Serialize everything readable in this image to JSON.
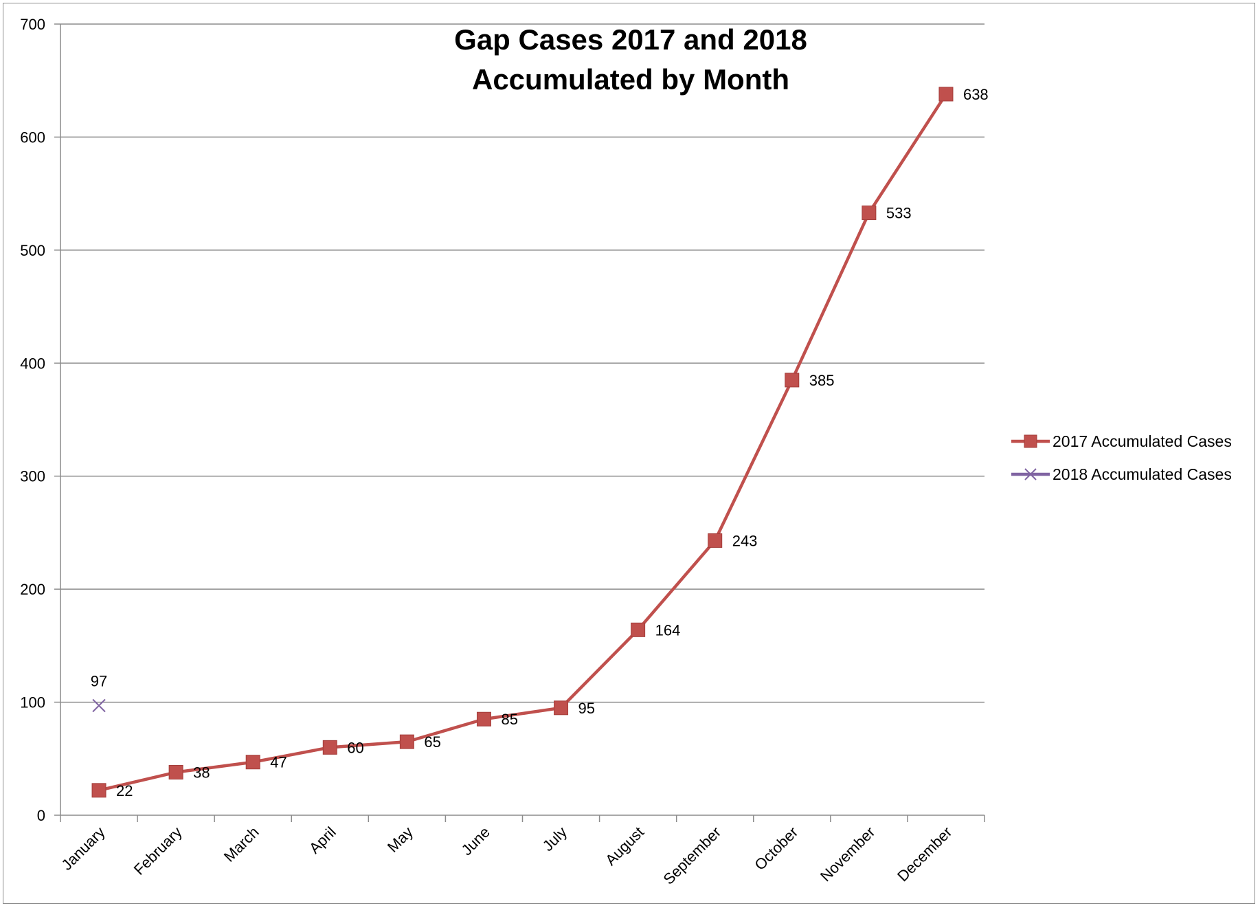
{
  "chart_data": {
    "type": "line",
    "title": "Gap Cases 2017 and 2018",
    "subtitle": "Accumulated by Month",
    "xlabel": "",
    "ylabel": "",
    "categories": [
      "January",
      "February",
      "March",
      "April",
      "May",
      "June",
      "July",
      "August",
      "September",
      "October",
      "November",
      "December"
    ],
    "ylim": [
      0,
      700
    ],
    "yticks": [
      0,
      100,
      200,
      300,
      400,
      500,
      600,
      700
    ],
    "grid": true,
    "legend_position": "right",
    "series": [
      {
        "name": "2017 Accumulated Cases",
        "values": [
          22,
          38,
          47,
          60,
          65,
          85,
          95,
          164,
          243,
          385,
          533,
          638
        ],
        "color": "#c0504d",
        "marker": "square"
      },
      {
        "name": "2018 Accumulated Cases",
        "values": [
          97,
          null,
          null,
          null,
          null,
          null,
          null,
          null,
          null,
          null,
          null,
          null
        ],
        "color": "#8064a2",
        "marker": "x"
      }
    ]
  }
}
